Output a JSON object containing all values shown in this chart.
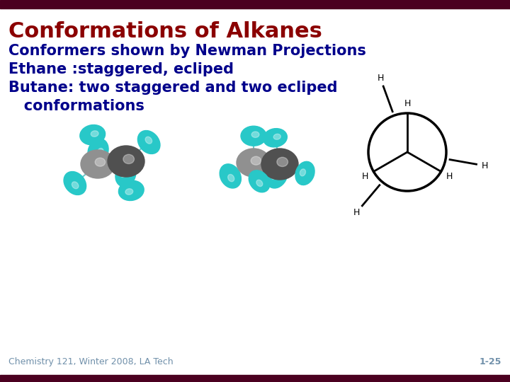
{
  "title": "Conformations of Alkanes",
  "title_color": "#8B0000",
  "title_fontsize": 22,
  "body_lines": [
    "Conformers shown by Newman Projections",
    "Ethane :staggered, ecliped",
    "Butane: two staggered and two ecliped",
    "   conformations"
  ],
  "body_color": "#00008B",
  "body_fontsize": 15,
  "footer_left": "Chemistry 121, Winter 2008, LA Tech",
  "footer_right": "1-25",
  "footer_color": "#7090AA",
  "footer_fontsize": 9,
  "bar_color": "#4B0020",
  "bg_color": "#FFFFFF",
  "light_color": "#28C8C8",
  "dark_color": "#505050",
  "light_color2": "#50D0D0"
}
